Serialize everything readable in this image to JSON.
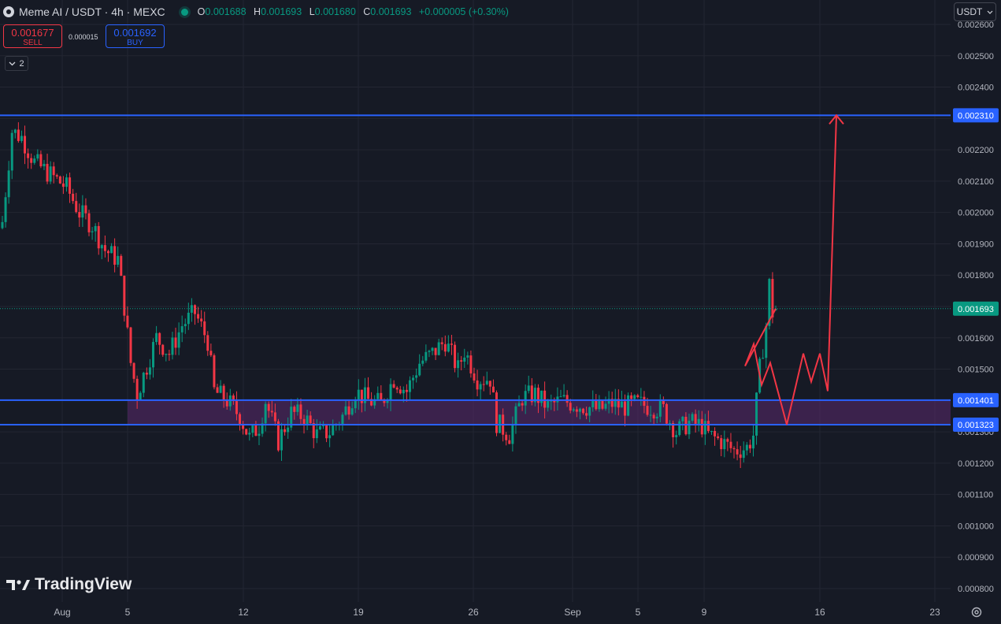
{
  "header": {
    "symbol": "Meme AI / USDT · 4h · MEXC",
    "open_label": "O",
    "open": "0.001688",
    "high_label": "H",
    "high": "0.001693",
    "low_label": "L",
    "low": "0.001680",
    "close_label": "C",
    "close": "0.001693",
    "change": "+0.000005 (+0.30%)"
  },
  "trade": {
    "sell_price": "0.001677",
    "sell_label": "SELL",
    "spread": "0.000015",
    "buy_price": "0.001692",
    "buy_label": "BUY"
  },
  "indicators_count": "2",
  "currency": "USDT",
  "watermark": "TradingView",
  "colors": {
    "bg": "#161a25",
    "up": "#089981",
    "down": "#f23645",
    "line": "#2962ff",
    "zone": "#5b2a6e",
    "path": "#f23645"
  },
  "chart_data": {
    "type": "candlestick",
    "x_tick_labels": [
      "Aug",
      "5",
      "12",
      "19",
      "26",
      "Sep",
      "5",
      "9",
      "16",
      "23"
    ],
    "y_tick_labels": [
      "0.002600",
      "0.002500",
      "0.002400",
      "0.002300",
      "0.002200",
      "0.002100",
      "0.002000",
      "0.001900",
      "0.001800",
      "0.001700",
      "0.001600",
      "0.001500",
      "0.001400",
      "0.001300",
      "0.001200",
      "0.001100",
      "0.001000",
      "0.000900",
      "0.000800"
    ],
    "y_range": [
      0.00078,
      0.0026
    ],
    "last_price": 0.001693,
    "last_price_label": "0.001693",
    "horizontal_levels": [
      {
        "value": 0.00231,
        "label": "0.002310"
      },
      {
        "value": 0.001401,
        "label": "0.001401"
      },
      {
        "value": 0.001323,
        "label": "0.001323"
      }
    ],
    "zone": [
      0.001323,
      0.001401
    ],
    "anchor_closes": [
      [
        0,
        0.00197
      ],
      [
        3,
        0.00226
      ],
      [
        6,
        0.00224
      ],
      [
        10,
        0.00216
      ],
      [
        15,
        0.00212
      ],
      [
        20,
        0.00208
      ],
      [
        24,
        0.002
      ],
      [
        28,
        0.00196
      ],
      [
        32,
        0.00188
      ],
      [
        36,
        0.00185
      ],
      [
        38,
        0.0017
      ],
      [
        40,
        0.00152
      ],
      [
        42,
        0.00142
      ],
      [
        44,
        0.00148
      ],
      [
        48,
        0.0016
      ],
      [
        52,
        0.00155
      ],
      [
        56,
        0.00164
      ],
      [
        60,
        0.00168
      ],
      [
        64,
        0.00159
      ],
      [
        66,
        0.00143
      ],
      [
        70,
        0.0014
      ],
      [
        74,
        0.00135
      ],
      [
        77,
        0.00128
      ],
      [
        80,
        0.00132
      ],
      [
        82,
        0.0014
      ],
      [
        86,
        0.00127
      ],
      [
        90,
        0.00136
      ],
      [
        94,
        0.00135
      ],
      [
        98,
        0.00129
      ],
      [
        102,
        0.0013
      ],
      [
        106,
        0.00135
      ],
      [
        110,
        0.00143
      ],
      [
        114,
        0.0014
      ],
      [
        118,
        0.00139
      ],
      [
        122,
        0.00147
      ],
      [
        126,
        0.00143
      ],
      [
        130,
        0.00152
      ],
      [
        134,
        0.00155
      ],
      [
        138,
        0.00159
      ],
      [
        142,
        0.0015
      ],
      [
        144,
        0.00156
      ],
      [
        148,
        0.00147
      ],
      [
        152,
        0.00147
      ],
      [
        154,
        0.00133
      ],
      [
        158,
        0.00129
      ],
      [
        162,
        0.00141
      ],
      [
        166,
        0.00142
      ],
      [
        170,
        0.00138
      ],
      [
        174,
        0.0014
      ],
      [
        178,
        0.00139
      ],
      [
        182,
        0.00138
      ],
      [
        186,
        0.00137
      ],
      [
        190,
        0.00139
      ],
      [
        194,
        0.00138
      ],
      [
        198,
        0.00139
      ],
      [
        202,
        0.00138
      ],
      [
        206,
        0.00137
      ],
      [
        210,
        0.0013
      ],
      [
        214,
        0.00133
      ],
      [
        218,
        0.00132
      ],
      [
        220,
        0.00129
      ],
      [
        224,
        0.00127
      ],
      [
        228,
        0.00124
      ],
      [
        232,
        0.00125
      ],
      [
        234,
        0.00129
      ],
      [
        236,
        0.0015
      ],
      [
        238,
        0.00164
      ],
      [
        239,
        0.00177
      ],
      [
        240,
        0.00168
      ],
      [
        241,
        0.001693
      ]
    ],
    "notable_extremes": {
      "high": 0.00239,
      "low": 0.00119
    },
    "projected_path": [
      [
        "Sep 11",
        0.001693
      ],
      [
        "Sep 11",
        0.00151
      ],
      [
        "Sep 12",
        0.00158
      ],
      [
        "Sep 12",
        0.00145
      ],
      [
        "Sep 13",
        0.00152
      ],
      [
        "Sep 14",
        0.001323
      ],
      [
        "Sep 15",
        0.00155
      ],
      [
        "Sep 15",
        0.00146
      ],
      [
        "Sep 16",
        0.00155
      ],
      [
        "Sep 16",
        0.00143
      ],
      [
        "Sep 17",
        0.00231
      ]
    ]
  }
}
